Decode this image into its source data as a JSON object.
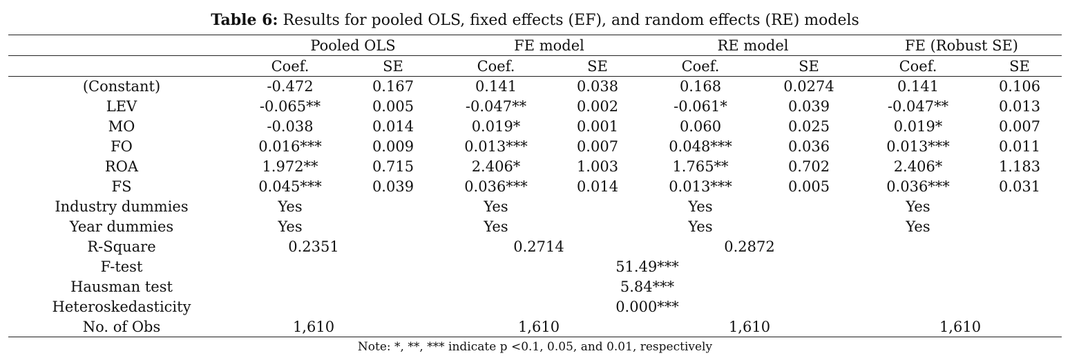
{
  "caption": {
    "label": "Table 6:",
    "text": " Results for pooled OLS, fixed effects (EF), and random effects (RE) models"
  },
  "groups": [
    "Pooled OLS",
    "FE model",
    "RE model",
    "FE (Robust SE)"
  ],
  "subheaders": [
    "Coef.",
    "SE",
    "Coef.",
    "SE",
    "Coef.",
    "SE",
    "Coef.",
    "SE"
  ],
  "rows": [
    {
      "label": "(Constant)",
      "cells": [
        "-0.472",
        "0.167",
        "0.141",
        "0.038",
        "0.168",
        "0.0274",
        "0.141",
        "0.106"
      ]
    },
    {
      "label": "LEV",
      "cells": [
        "-0.065**",
        "0.005",
        "-0.047**",
        "0.002",
        "-0.061*",
        "0.039",
        "-0.047**",
        "0.013"
      ]
    },
    {
      "label": "MO",
      "cells": [
        "-0.038",
        "0.014",
        "0.019*",
        "0.001",
        "0.060",
        "0.025",
        "0.019*",
        "0.007"
      ]
    },
    {
      "label": "FO",
      "cells": [
        "0.016***",
        "0.009",
        "0.013***",
        "0.007",
        "0.048***",
        "0.036",
        "0.013***",
        "0.011"
      ]
    },
    {
      "label": "ROA",
      "cells": [
        "1.972**",
        "0.715",
        "2.406*",
        "1.003",
        "1.765**",
        "0.702",
        "2.406*",
        "1.183"
      ]
    },
    {
      "label": "FS",
      "cells": [
        "0.045***",
        "0.039",
        "0.036***",
        "0.014",
        "0.013***",
        "0.005",
        "0.036***",
        "0.031"
      ]
    },
    {
      "label": "Industry dummies",
      "cells": [
        "Yes",
        "",
        "Yes",
        "",
        "Yes",
        "",
        "Yes",
        ""
      ]
    },
    {
      "label": "Year dummies",
      "cells": [
        "Yes",
        "",
        "Yes",
        "",
        "Yes",
        "",
        "Yes",
        ""
      ]
    }
  ],
  "rsquare": {
    "label": "R-Square",
    "values": [
      "0.2351",
      "0.2714",
      "0.2872"
    ]
  },
  "tests": [
    {
      "label": "F-test",
      "value": "51.49***"
    },
    {
      "label": "Hausman test",
      "value": "5.84***"
    },
    {
      "label": "Heteroskedasticity",
      "value": "0.000***"
    }
  ],
  "obs": {
    "label": "No. of Obs",
    "values": [
      "1,610",
      "1,610",
      "1,610",
      "1,610"
    ]
  },
  "note": "Note: *, **, *** indicate p <0.1, 0.05, and 0.01, respectively"
}
